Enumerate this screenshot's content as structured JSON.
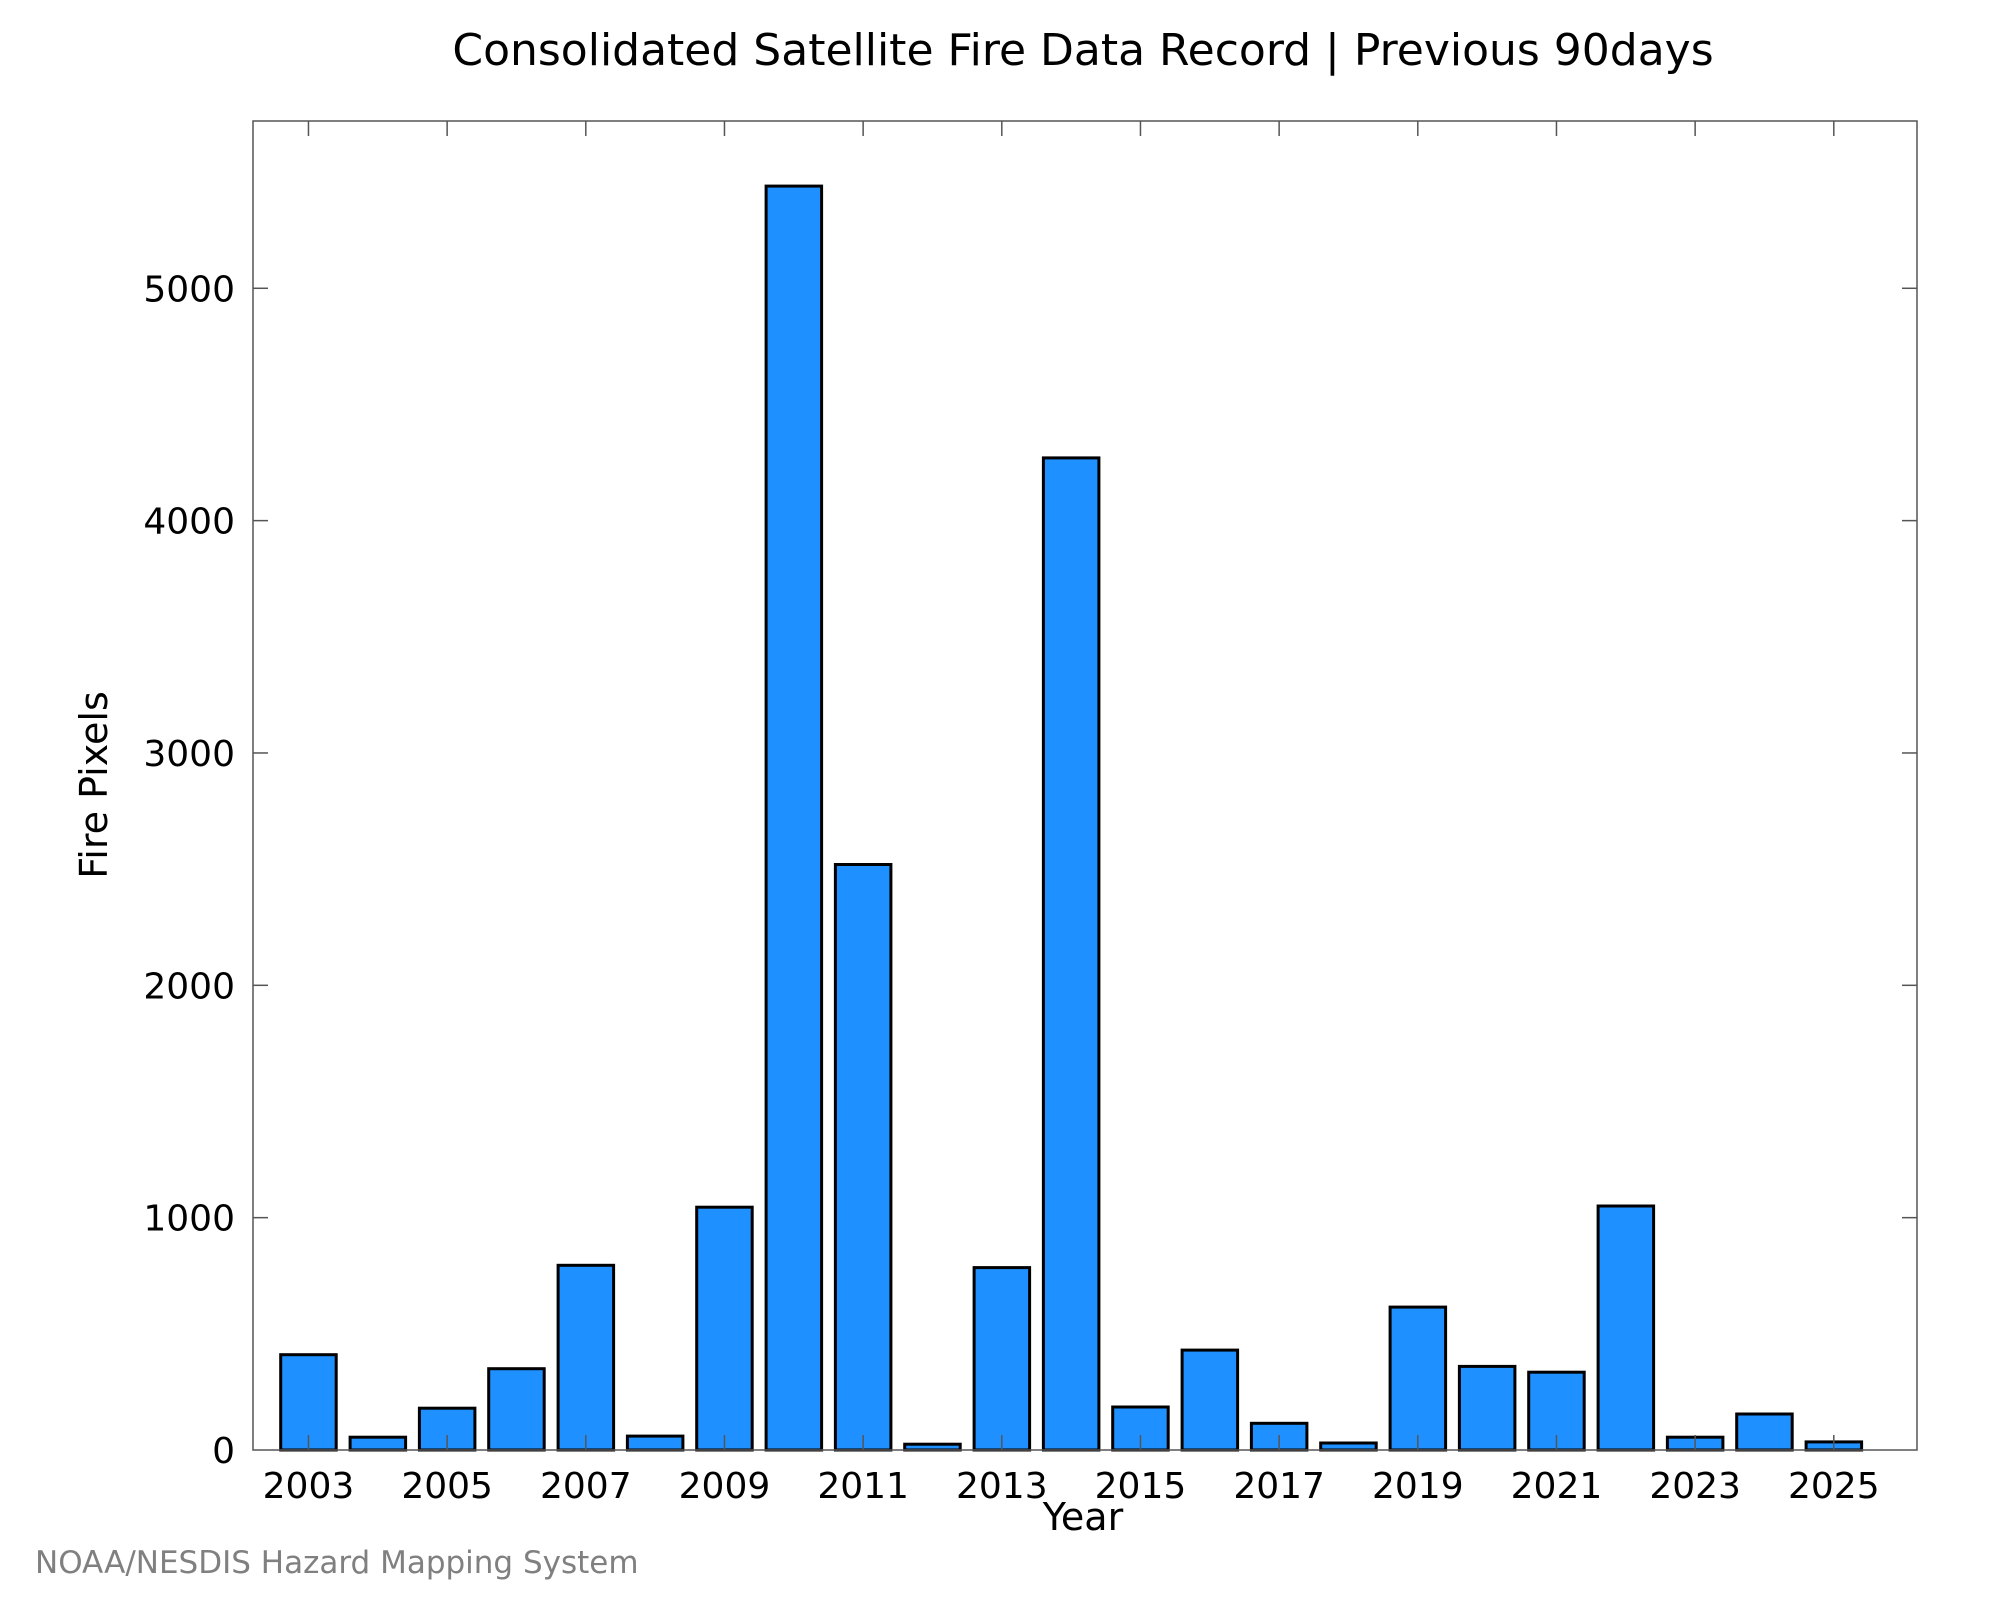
{
  "chart_data": {
    "type": "bar",
    "title": "Consolidated Satellite Fire Data Record | Previous 90days",
    "xlabel": "Year",
    "ylabel": "Fire Pixels",
    "credit": "NOAA/NESDIS Hazard Mapping System",
    "categories": [
      2003,
      2004,
      2005,
      2006,
      2007,
      2008,
      2009,
      2010,
      2011,
      2012,
      2013,
      2014,
      2015,
      2016,
      2017,
      2018,
      2019,
      2020,
      2021,
      2022,
      2023,
      2024,
      2025
    ],
    "values": [
      410,
      55,
      180,
      350,
      795,
      60,
      1045,
      5440,
      2520,
      25,
      785,
      4270,
      185,
      430,
      115,
      30,
      615,
      360,
      335,
      1050,
      55,
      155,
      35
    ],
    "xtick_labels": [
      "2003",
      "2005",
      "2007",
      "2009",
      "2011",
      "2013",
      "2015",
      "2017",
      "2019",
      "2021",
      "2023",
      "2025"
    ],
    "yticks": [
      0,
      1000,
      2000,
      3000,
      4000,
      5000
    ],
    "ylim": [
      0,
      5720
    ],
    "xlim": [
      2002.2,
      2026.2
    ],
    "bar_color": "#1e90ff",
    "bar_edge_color": "#000000",
    "grid": false,
    "legend": "none"
  }
}
